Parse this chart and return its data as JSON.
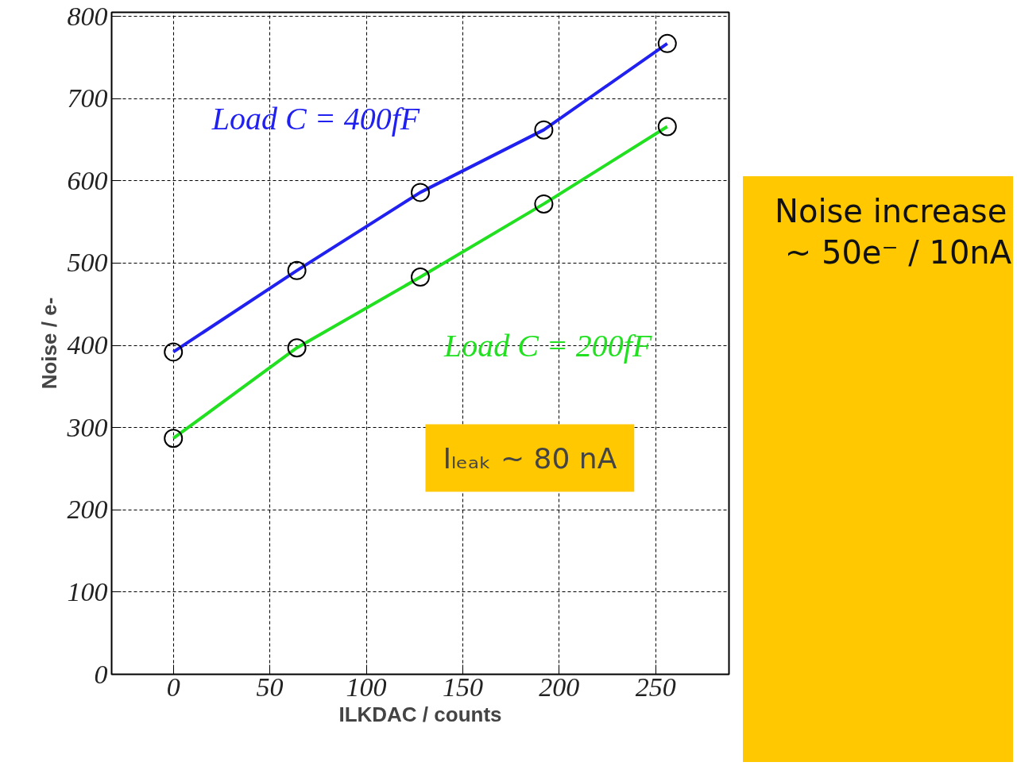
{
  "chart_data": {
    "type": "line",
    "xlabel": "ILKDAC / counts",
    "ylabel": "Noise / e-",
    "x": [
      0,
      64,
      128,
      192,
      256
    ],
    "series": [
      {
        "name": "Load C = 400fF",
        "color": "#2020f0",
        "values": [
          392,
          491,
          586,
          662,
          767
        ]
      },
      {
        "name": "Load C = 200fF",
        "color": "#20e020",
        "values": [
          287,
          397,
          483,
          572,
          666
        ]
      }
    ],
    "xlim": [
      -32,
      288
    ],
    "ylim": [
      0,
      805
    ],
    "xticks": [
      0,
      50,
      100,
      150,
      200,
      250
    ],
    "yticks": [
      0,
      100,
      200,
      300,
      400,
      500,
      600,
      700,
      800
    ],
    "grid": true,
    "marker": "circle",
    "line_style": "solid",
    "annotations": [
      "Noise increase\n ~ 50e⁻ / 10nA",
      "Iₗₑₐₖ ~ 80 nA"
    ]
  }
}
